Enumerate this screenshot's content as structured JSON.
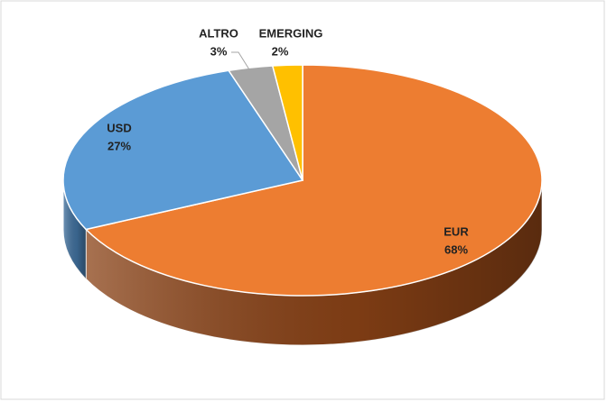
{
  "chart_data": {
    "type": "pie",
    "categories": [
      "EUR",
      "USD",
      "ALTRO",
      "EMERGING"
    ],
    "values": [
      68,
      27,
      3,
      2
    ],
    "value_labels": [
      "68%",
      "27%",
      "3%",
      "2%"
    ],
    "colors": [
      "#ed7d31",
      "#5b9bd5",
      "#a5a5a5",
      "#ffc000"
    ],
    "side_colors": [
      "#8a4216",
      "#3f6f9c",
      "#7a7a7a",
      "#b58800"
    ]
  }
}
